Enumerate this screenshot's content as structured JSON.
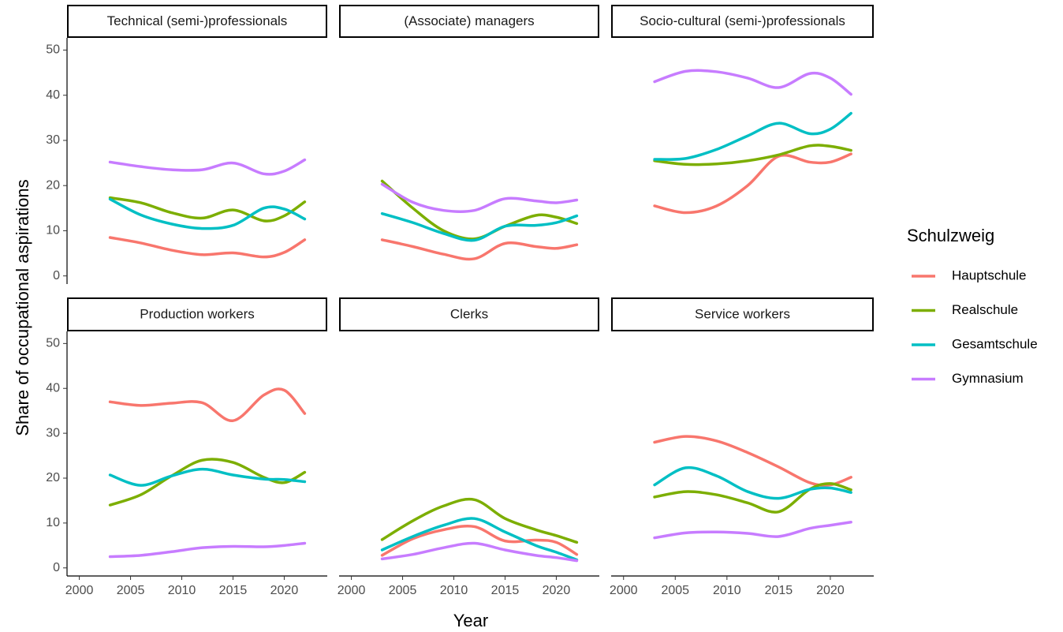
{
  "axis_titles": {
    "x": "Year",
    "y": "Share of occupational aspirations"
  },
  "legend": {
    "title": "Schulzweig"
  },
  "chart_data": [
    {
      "type": "line",
      "title": "Technical (semi-)professionals",
      "x": [
        2003,
        2006,
        2009,
        2012,
        2015,
        2018,
        2020,
        2022
      ],
      "xlim": [
        1998.8,
        2024.2
      ],
      "ylim": [
        -1.8,
        52.7
      ],
      "yticks": [
        0,
        10,
        20,
        30,
        40,
        50
      ],
      "series": [
        {
          "name": "Hauptschule",
          "color": "#f8766d",
          "values": [
            8.5,
            7.3,
            5.7,
            4.7,
            5.1,
            4.2,
            5.2,
            8.0
          ]
        },
        {
          "name": "Realschule",
          "color": "#7cae00",
          "values": [
            17.3,
            16.2,
            14,
            12.8,
            14.6,
            12.2,
            13.3,
            16.4
          ]
        },
        {
          "name": "Gesamtschule",
          "color": "#00bfc4",
          "values": [
            17,
            13.5,
            11.5,
            10.5,
            11.2,
            15,
            14.8,
            12.6
          ]
        },
        {
          "name": "Gymnasium",
          "color": "#c77cff",
          "values": [
            25.2,
            24.2,
            23.5,
            23.5,
            25,
            22.6,
            23.2,
            25.7
          ]
        }
      ]
    },
    {
      "type": "line",
      "title": "(Associate) managers",
      "x": [
        2003,
        2006,
        2009,
        2012,
        2015,
        2018,
        2020,
        2022
      ],
      "xlim": [
        1998.8,
        2024.2
      ],
      "ylim": [
        -1.8,
        52.7
      ],
      "series": [
        {
          "name": "Hauptschule",
          "color": "#f8766d",
          "values": [
            8,
            6.5,
            4.8,
            3.8,
            7.2,
            6.5,
            6.1,
            6.9
          ]
        },
        {
          "name": "Realschule",
          "color": "#7cae00",
          "values": [
            21,
            15,
            10,
            8.2,
            11,
            13.4,
            13,
            11.6
          ]
        },
        {
          "name": "Gesamtschule",
          "color": "#00bfc4",
          "values": [
            13.8,
            11.8,
            9.4,
            7.9,
            11,
            11.2,
            11.8,
            13.3
          ]
        },
        {
          "name": "Gymnasium",
          "color": "#c77cff",
          "values": [
            20.3,
            16.3,
            14.5,
            14.5,
            17.1,
            16.6,
            16.2,
            16.8
          ]
        }
      ]
    },
    {
      "type": "line",
      "title": "Socio-cultural (semi-)professionals",
      "x": [
        2003,
        2006,
        2009,
        2012,
        2015,
        2018,
        2020,
        2022
      ],
      "xlim": [
        1998.8,
        2024.2
      ],
      "ylim": [
        -1.8,
        52.7
      ],
      "series": [
        {
          "name": "Hauptschule",
          "color": "#f8766d",
          "values": [
            15.5,
            14,
            15.5,
            20,
            26.5,
            25.2,
            25.2,
            27
          ]
        },
        {
          "name": "Realschule",
          "color": "#7cae00",
          "values": [
            25.5,
            24.7,
            24.8,
            25.5,
            26.8,
            28.8,
            28.7,
            27.8
          ]
        },
        {
          "name": "Gesamtschule",
          "color": "#00bfc4",
          "values": [
            25.8,
            26,
            28,
            31,
            33.8,
            31.5,
            32.5,
            36
          ]
        },
        {
          "name": "Gymnasium",
          "color": "#c77cff",
          "values": [
            43,
            45.3,
            45.2,
            43.8,
            41.7,
            44.8,
            43.8,
            40.2
          ]
        }
      ]
    },
    {
      "type": "line",
      "title": "Production workers",
      "x": [
        2003,
        2006,
        2009,
        2012,
        2015,
        2018,
        2020,
        2022
      ],
      "xlim": [
        1998.8,
        2024.2
      ],
      "ylim": [
        -1.8,
        52.7
      ],
      "yticks": [
        0,
        10,
        20,
        30,
        40,
        50
      ],
      "xticks": [
        2000,
        2005,
        2010,
        2015,
        2020
      ],
      "series": [
        {
          "name": "Hauptschule",
          "color": "#f8766d",
          "values": [
            37,
            36.2,
            36.7,
            36.8,
            32.8,
            38.5,
            39.6,
            34.4
          ]
        },
        {
          "name": "Realschule",
          "color": "#7cae00",
          "values": [
            14,
            16.3,
            20.5,
            24,
            23.5,
            20.2,
            19,
            21.3
          ]
        },
        {
          "name": "Gesamtschule",
          "color": "#00bfc4",
          "values": [
            20.7,
            18.4,
            20.5,
            22,
            20.7,
            19.8,
            19.7,
            19.2
          ]
        },
        {
          "name": "Gymnasium",
          "color": "#c77cff",
          "values": [
            2.5,
            2.8,
            3.6,
            4.5,
            4.8,
            4.7,
            5,
            5.5
          ]
        }
      ]
    },
    {
      "type": "line",
      "title": "Clerks",
      "x": [
        2003,
        2006,
        2009,
        2012,
        2015,
        2018,
        2020,
        2022
      ],
      "xlim": [
        1998.8,
        2024.2
      ],
      "ylim": [
        -1.8,
        52.7
      ],
      "xticks": [
        2000,
        2005,
        2010,
        2015,
        2020
      ],
      "series": [
        {
          "name": "Hauptschule",
          "color": "#f8766d",
          "values": [
            2.8,
            6.5,
            8.5,
            9.2,
            6,
            6.2,
            5.7,
            3
          ]
        },
        {
          "name": "Realschule",
          "color": "#7cae00",
          "values": [
            6.3,
            10.5,
            13.8,
            15.2,
            11,
            8.5,
            7.2,
            5.7
          ]
        },
        {
          "name": "Gesamtschule",
          "color": "#00bfc4",
          "values": [
            4,
            7,
            9.5,
            11,
            8,
            5,
            3.5,
            1.8
          ]
        },
        {
          "name": "Gymnasium",
          "color": "#c77cff",
          "values": [
            2,
            3,
            4.5,
            5.5,
            4,
            2.8,
            2.3,
            1.6
          ]
        }
      ]
    },
    {
      "type": "line",
      "title": "Service workers",
      "x": [
        2003,
        2006,
        2009,
        2012,
        2015,
        2018,
        2020,
        2022
      ],
      "xlim": [
        1998.8,
        2024.2
      ],
      "ylim": [
        -1.8,
        52.7
      ],
      "xticks": [
        2000,
        2005,
        2010,
        2015,
        2020
      ],
      "series": [
        {
          "name": "Hauptschule",
          "color": "#f8766d",
          "values": [
            28,
            29.3,
            28.3,
            25.7,
            22.5,
            19,
            18.5,
            20.2
          ]
        },
        {
          "name": "Realschule",
          "color": "#7cae00",
          "values": [
            15.8,
            17,
            16.3,
            14.5,
            12.5,
            17.5,
            18.8,
            17.4
          ]
        },
        {
          "name": "Gesamtschule",
          "color": "#00bfc4",
          "values": [
            18.5,
            22.3,
            20.5,
            17,
            15.5,
            17.5,
            17.8,
            16.8
          ]
        },
        {
          "name": "Gymnasium",
          "color": "#c77cff",
          "values": [
            6.7,
            7.8,
            8,
            7.7,
            7,
            8.8,
            9.5,
            10.2
          ]
        }
      ]
    }
  ]
}
